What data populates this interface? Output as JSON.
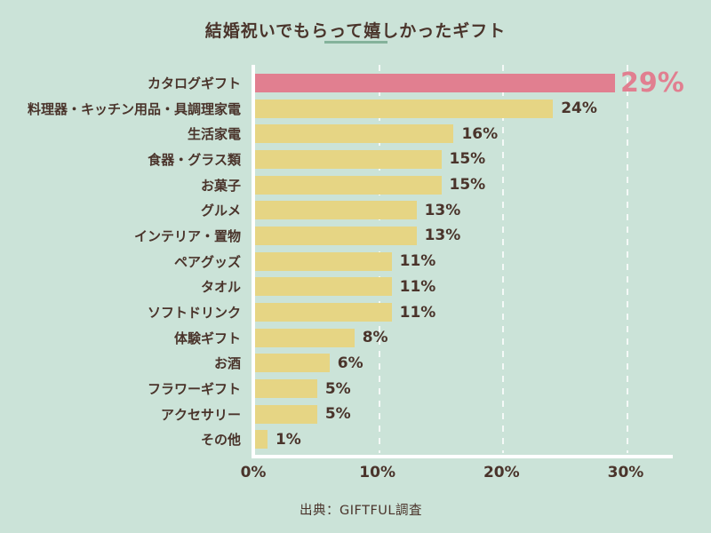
{
  "title": "結婚祝いでもらって嬉しかったギフト",
  "source": "出典：GIFTFUL調査",
  "colors": {
    "background": "#cbe3d8",
    "bar": "#e6d584",
    "highlight_bar": "#e17f90",
    "text": "#4a342b",
    "title_underline": "#84b29b",
    "axis": "#ffffff"
  },
  "chart_data": {
    "type": "bar",
    "orientation": "horizontal",
    "title": "結婚祝いでもらって嬉しかったギフト",
    "categories": [
      "カタログギフト",
      "料理器・キッチン用品・具調理家電",
      "生活家電",
      "食器・グラス類",
      "お菓子",
      "グルメ",
      "インテリア・置物",
      "ペアグッズ",
      "タオル",
      "ソフトドリンク",
      "体験ギフト",
      "お酒",
      "フラワーギフト",
      "アクセサリー",
      "その他"
    ],
    "values": [
      29,
      24,
      16,
      15,
      15,
      13,
      13,
      11,
      11,
      11,
      8,
      6,
      5,
      5,
      1
    ],
    "value_labels": [
      "29%",
      "24%",
      "16%",
      "15%",
      "15%",
      "13%",
      "13%",
      "11%",
      "11%",
      "11%",
      "8%",
      "6%",
      "5%",
      "5%",
      "1%"
    ],
    "highlight_index": 0,
    "x_ticks": [
      "0%",
      "10%",
      "20%",
      "30%"
    ],
    "xlim": [
      0,
      30
    ],
    "grid": "dashed-vertical-at-10-20-30",
    "legend": "none",
    "source": "出典：GIFTFUL調査"
  }
}
